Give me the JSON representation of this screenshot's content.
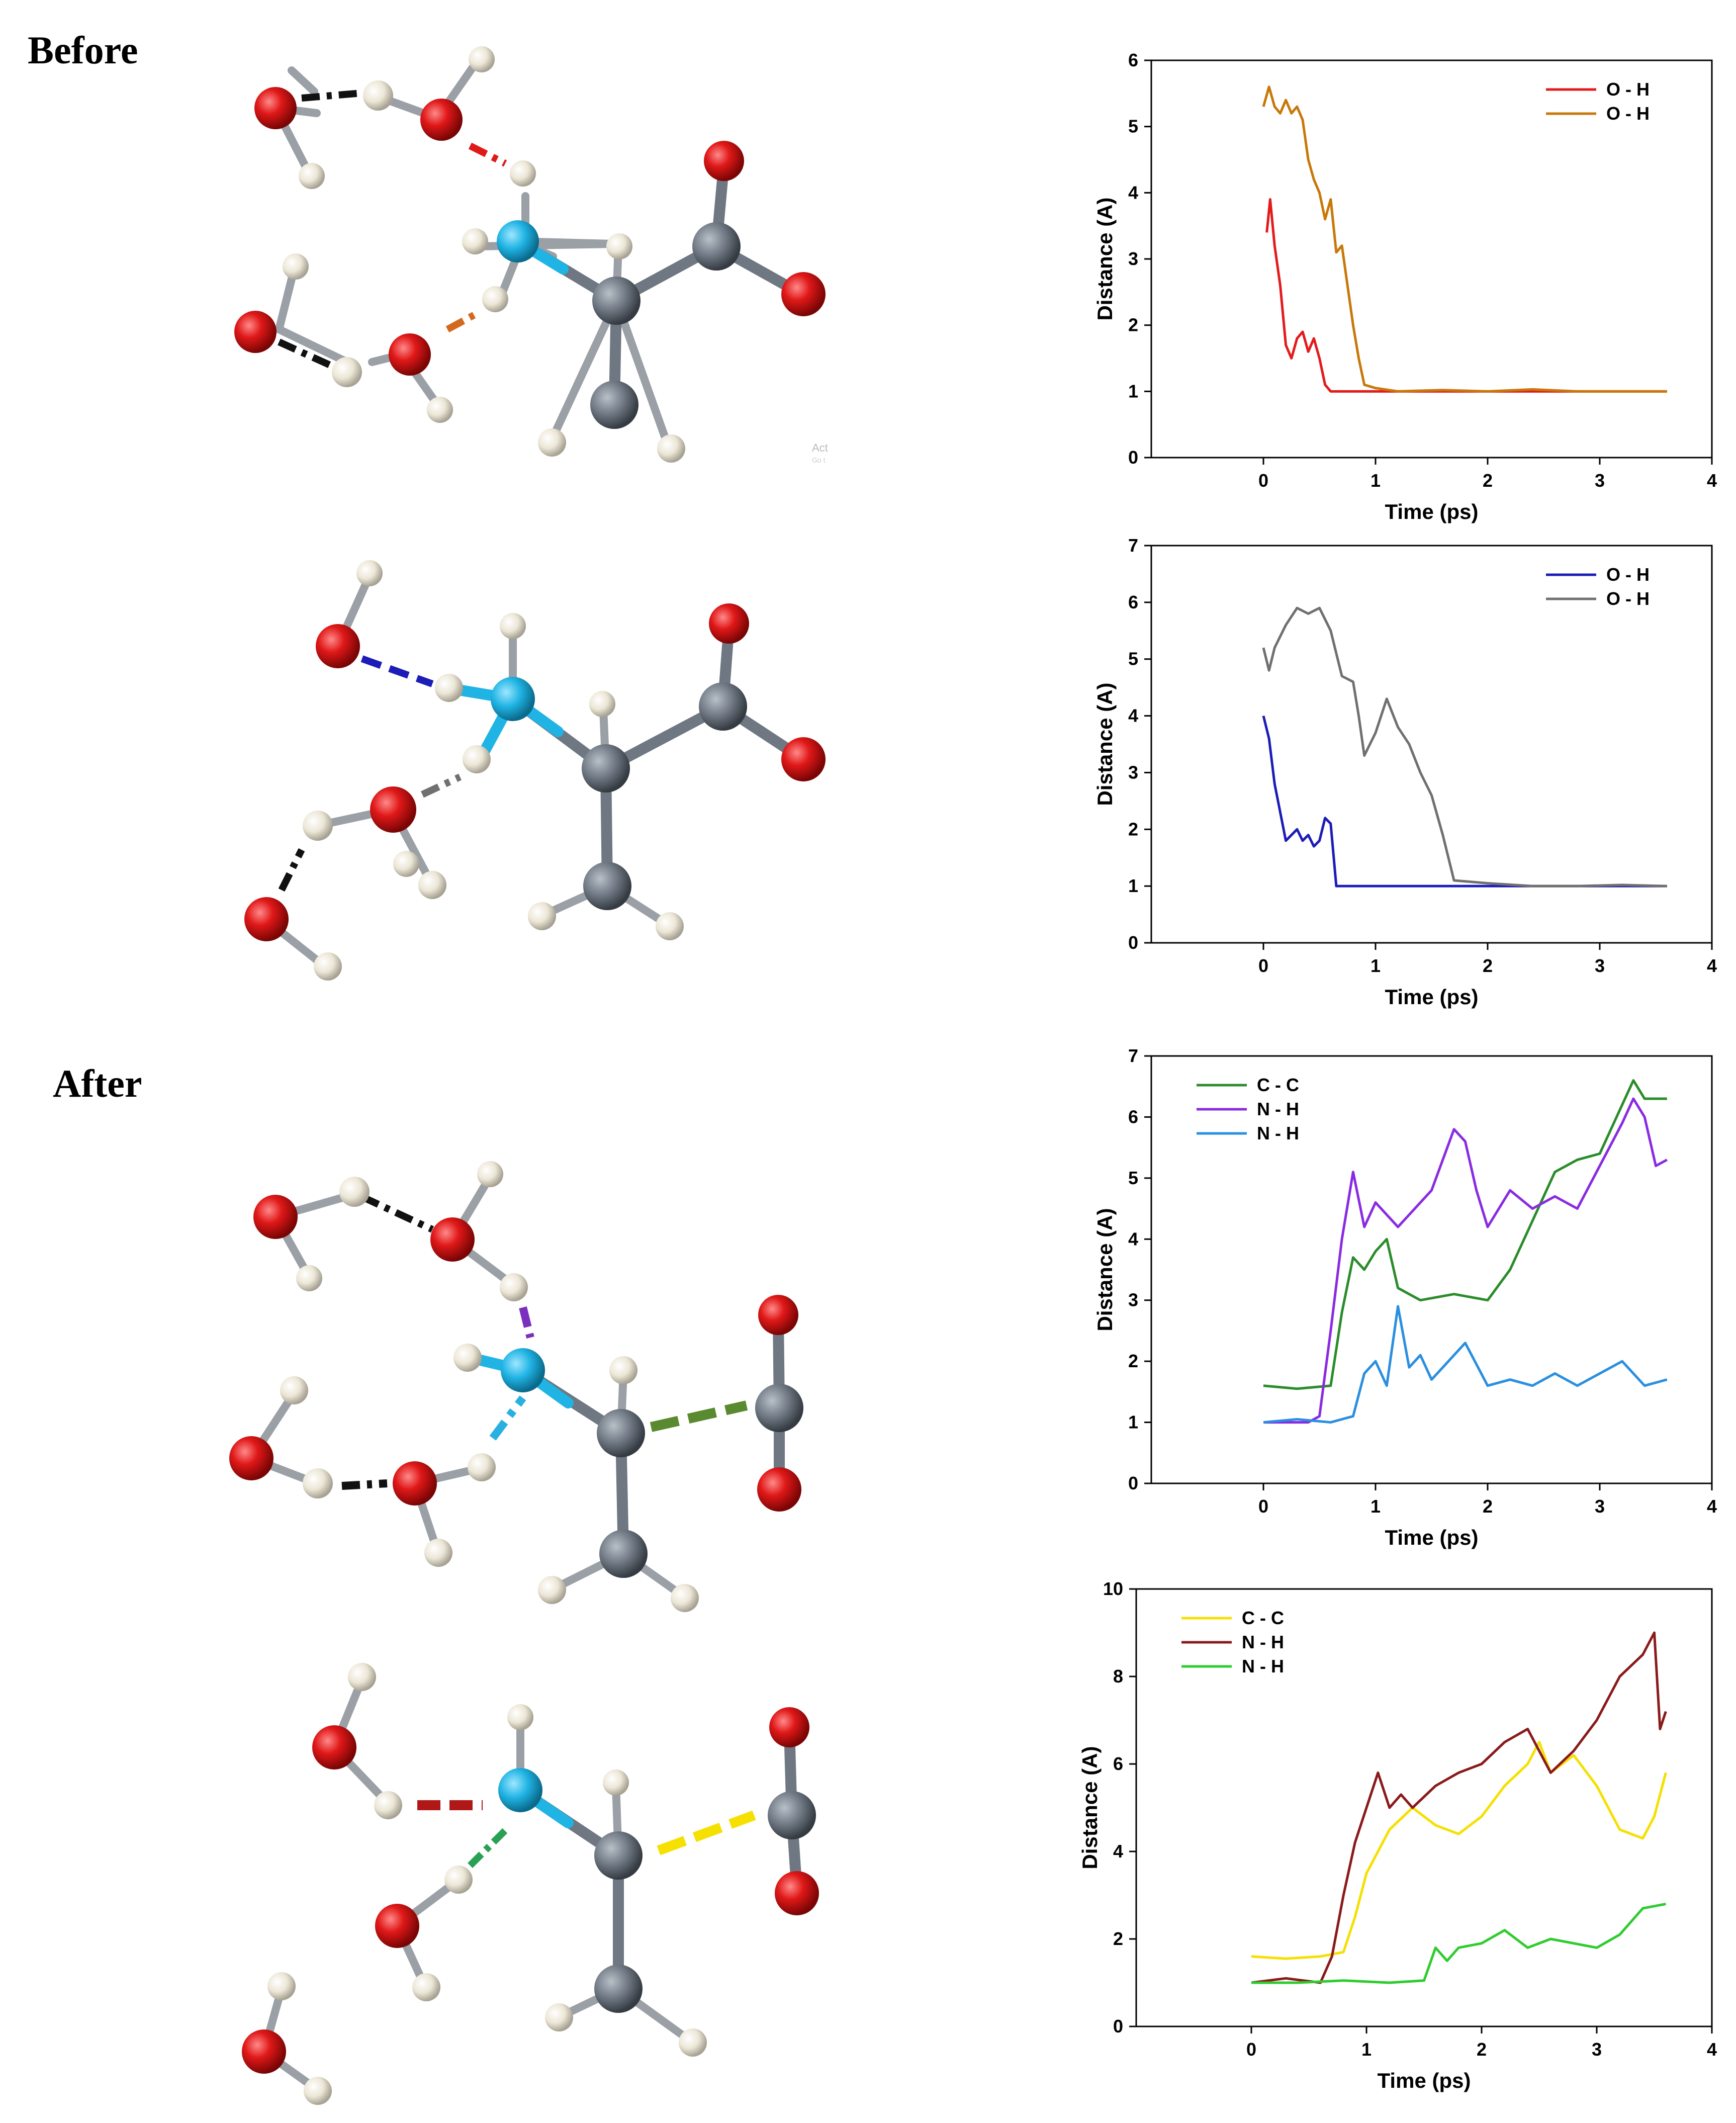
{
  "labels": {
    "before": "Before",
    "after": "After"
  },
  "watermark": {
    "line1": "Act",
    "line2": "Go t"
  },
  "colors": {
    "oxygen": "#d81515",
    "hydrogen": "#ece6d6",
    "nitrogen": "#20b4e4",
    "carbon": "#6e7782",
    "bond": "#6e7782"
  },
  "chart_data": [
    {
      "type": "line",
      "xlabel": "Time (ps)",
      "ylabel": "Distance (A)",
      "xlim": [
        -1.0,
        4.0
      ],
      "ylim": [
        0,
        6
      ],
      "xticks": [
        0,
        1,
        2,
        3,
        4
      ],
      "yticks": [
        0,
        1,
        2,
        3,
        4,
        5,
        6
      ],
      "legend": "top-right",
      "series": [
        {
          "name": "O - H",
          "color": "#e41a1c",
          "x": [
            0.03,
            0.06,
            0.1,
            0.15,
            0.2,
            0.25,
            0.3,
            0.35,
            0.4,
            0.45,
            0.5,
            0.55,
            0.6,
            0.7,
            0.9,
            1.2,
            1.6,
            2.0,
            2.4,
            2.8,
            3.2,
            3.6
          ],
          "y": [
            3.4,
            3.9,
            3.2,
            2.6,
            1.7,
            1.5,
            1.8,
            1.9,
            1.6,
            1.8,
            1.5,
            1.1,
            1.0,
            1.0,
            1.0,
            1.0,
            1.0,
            1.0,
            1.0,
            1.0,
            1.0,
            1.0
          ]
        },
        {
          "name": "O - H",
          "color": "#c8780a",
          "x": [
            0.0,
            0.05,
            0.1,
            0.15,
            0.2,
            0.25,
            0.3,
            0.35,
            0.4,
            0.45,
            0.5,
            0.55,
            0.6,
            0.65,
            0.7,
            0.75,
            0.8,
            0.85,
            0.9,
            1.0,
            1.2,
            1.6,
            2.0,
            2.4,
            2.8,
            3.2,
            3.6
          ],
          "y": [
            5.3,
            5.6,
            5.3,
            5.2,
            5.4,
            5.2,
            5.3,
            5.1,
            4.5,
            4.2,
            4.0,
            3.6,
            3.9,
            3.1,
            3.2,
            2.6,
            2.0,
            1.5,
            1.1,
            1.05,
            1.0,
            1.02,
            1.0,
            1.03,
            1.0,
            1.0,
            1.0
          ]
        }
      ]
    },
    {
      "type": "line",
      "xlabel": "Time (ps)",
      "ylabel": "Distance (A)",
      "xlim": [
        -1.0,
        4.0
      ],
      "ylim": [
        0,
        7
      ],
      "xticks": [
        0,
        1,
        2,
        3,
        4
      ],
      "yticks": [
        0,
        1,
        2,
        3,
        4,
        5,
        6,
        7
      ],
      "legend": "top-right",
      "series": [
        {
          "name": "O - H",
          "color": "#1c1cb8",
          "x": [
            0.0,
            0.05,
            0.1,
            0.15,
            0.2,
            0.25,
            0.3,
            0.35,
            0.4,
            0.45,
            0.5,
            0.55,
            0.6,
            0.65,
            0.7,
            0.9,
            1.2,
            1.6,
            2.0,
            2.4,
            2.8,
            3.2,
            3.6
          ],
          "y": [
            4.0,
            3.6,
            2.8,
            2.3,
            1.8,
            1.9,
            2.0,
            1.8,
            1.9,
            1.7,
            1.8,
            2.2,
            2.1,
            1.0,
            1.0,
            1.0,
            1.0,
            1.0,
            1.0,
            1.0,
            1.0,
            1.0,
            1.0
          ]
        },
        {
          "name": "O - H",
          "color": "#707070",
          "x": [
            0.0,
            0.05,
            0.1,
            0.2,
            0.3,
            0.4,
            0.5,
            0.6,
            0.7,
            0.8,
            0.85,
            0.9,
            1.0,
            1.1,
            1.2,
            1.3,
            1.4,
            1.5,
            1.6,
            1.7,
            2.0,
            2.4,
            2.8,
            3.2,
            3.6
          ],
          "y": [
            5.2,
            4.8,
            5.2,
            5.6,
            5.9,
            5.8,
            5.9,
            5.5,
            4.7,
            4.6,
            4.0,
            3.3,
            3.7,
            4.3,
            3.8,
            3.5,
            3.0,
            2.6,
            1.9,
            1.1,
            1.05,
            1.0,
            1.0,
            1.02,
            1.0
          ]
        }
      ]
    },
    {
      "type": "line",
      "xlabel": "Time (ps)",
      "ylabel": "Distance (A)",
      "xlim": [
        -1.0,
        4.0
      ],
      "ylim": [
        0,
        7
      ],
      "xticks": [
        0,
        1,
        2,
        3,
        4
      ],
      "yticks": [
        0,
        1,
        2,
        3,
        4,
        5,
        6,
        7
      ],
      "legend": "top-left",
      "series": [
        {
          "name": "C - C",
          "color": "#2a8c2a",
          "x": [
            0.0,
            0.3,
            0.6,
            0.7,
            0.8,
            0.9,
            1.0,
            1.1,
            1.2,
            1.4,
            1.7,
            2.0,
            2.2,
            2.4,
            2.6,
            2.8,
            3.0,
            3.2,
            3.3,
            3.4,
            3.6
          ],
          "y": [
            1.6,
            1.55,
            1.6,
            2.8,
            3.7,
            3.5,
            3.8,
            4.0,
            3.2,
            3.0,
            3.1,
            3.0,
            3.5,
            4.3,
            5.1,
            5.3,
            5.4,
            6.2,
            6.6,
            6.3,
            6.3
          ]
        },
        {
          "name": "N - H",
          "color": "#8a2be2",
          "x": [
            0.0,
            0.4,
            0.5,
            0.6,
            0.7,
            0.8,
            0.9,
            1.0,
            1.2,
            1.5,
            1.7,
            1.8,
            1.9,
            2.0,
            2.2,
            2.4,
            2.6,
            2.8,
            3.0,
            3.2,
            3.3,
            3.4,
            3.5,
            3.6
          ],
          "y": [
            1.0,
            1.0,
            1.1,
            2.5,
            4.0,
            5.1,
            4.2,
            4.6,
            4.2,
            4.8,
            5.8,
            5.6,
            4.8,
            4.2,
            4.8,
            4.5,
            4.7,
            4.5,
            5.2,
            5.9,
            6.3,
            6.0,
            5.2,
            5.3
          ]
        },
        {
          "name": "N - H",
          "color": "#2a8fe0",
          "x": [
            0.0,
            0.3,
            0.6,
            0.8,
            0.9,
            1.0,
            1.1,
            1.2,
            1.3,
            1.4,
            1.5,
            1.6,
            1.8,
            2.0,
            2.2,
            2.4,
            2.6,
            2.8,
            3.0,
            3.2,
            3.4,
            3.6
          ],
          "y": [
            1.0,
            1.05,
            1.0,
            1.1,
            1.8,
            2.0,
            1.6,
            2.9,
            1.9,
            2.1,
            1.7,
            1.9,
            2.3,
            1.6,
            1.7,
            1.6,
            1.8,
            1.6,
            1.8,
            2.0,
            1.6,
            1.7
          ]
        }
      ]
    },
    {
      "type": "line",
      "xlabel": "Time (ps)",
      "ylabel": "Distance (A)",
      "xlim": [
        -1.0,
        4.0
      ],
      "ylim": [
        0,
        10
      ],
      "xticks": [
        0,
        1,
        2,
        3,
        4
      ],
      "yticks": [
        0,
        2,
        4,
        6,
        8,
        10
      ],
      "legend": "top-left",
      "series": [
        {
          "name": "C - C",
          "color": "#f5e000",
          "x": [
            0.0,
            0.3,
            0.6,
            0.8,
            0.9,
            1.0,
            1.1,
            1.2,
            1.4,
            1.6,
            1.8,
            2.0,
            2.2,
            2.4,
            2.5,
            2.6,
            2.8,
            3.0,
            3.2,
            3.4,
            3.5,
            3.6
          ],
          "y": [
            1.6,
            1.55,
            1.6,
            1.7,
            2.5,
            3.5,
            4.0,
            4.5,
            5.0,
            4.6,
            4.4,
            4.8,
            5.5,
            6.0,
            6.5,
            5.8,
            6.2,
            5.5,
            4.5,
            4.3,
            4.8,
            5.8
          ]
        },
        {
          "name": "N - H",
          "color": "#8b1a1a",
          "x": [
            0.0,
            0.3,
            0.6,
            0.7,
            0.8,
            0.9,
            1.0,
            1.1,
            1.2,
            1.3,
            1.4,
            1.6,
            1.8,
            2.0,
            2.2,
            2.4,
            2.6,
            2.8,
            3.0,
            3.2,
            3.4,
            3.5,
            3.55,
            3.6
          ],
          "y": [
            1.0,
            1.1,
            1.0,
            1.6,
            3.0,
            4.2,
            5.0,
            5.8,
            5.0,
            5.3,
            5.0,
            5.5,
            5.8,
            6.0,
            6.5,
            6.8,
            5.8,
            6.3,
            7.0,
            8.0,
            8.5,
            9.0,
            6.8,
            7.2
          ]
        },
        {
          "name": "N - H",
          "color": "#2ecc2e",
          "x": [
            0.0,
            0.4,
            0.8,
            1.2,
            1.5,
            1.6,
            1.7,
            1.8,
            2.0,
            2.2,
            2.4,
            2.6,
            2.8,
            3.0,
            3.2,
            3.4,
            3.6
          ],
          "y": [
            1.0,
            1.0,
            1.05,
            1.0,
            1.05,
            1.8,
            1.5,
            1.8,
            1.9,
            2.2,
            1.8,
            2.0,
            1.9,
            1.8,
            2.1,
            2.7,
            2.8
          ]
        }
      ]
    }
  ]
}
